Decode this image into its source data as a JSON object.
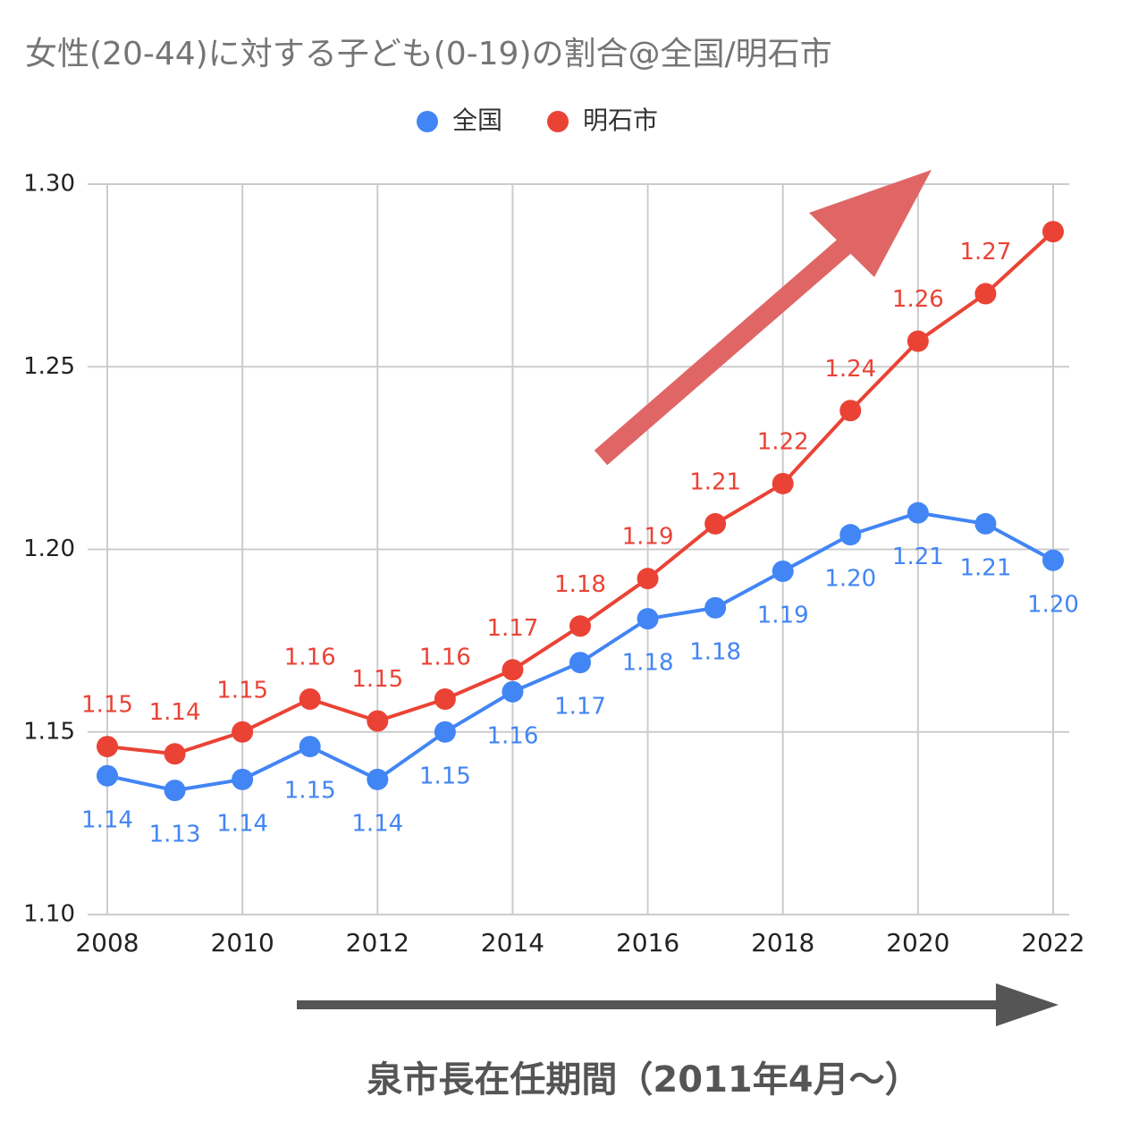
{
  "chart_data": {
    "type": "line",
    "title": "女性(20-44)に対する子ども(0-19)の割合@全国/明石市",
    "annotation": "泉市長在任期間（2011年4月〜）",
    "x": [
      2008,
      2009,
      2010,
      2011,
      2012,
      2013,
      2014,
      2015,
      2016,
      2017,
      2018,
      2019,
      2020,
      2021,
      2022
    ],
    "series": [
      {
        "name": "全国",
        "color": "#4285f4",
        "values": [
          1.138,
          1.134,
          1.137,
          1.146,
          1.137,
          1.15,
          1.161,
          1.169,
          1.181,
          1.184,
          1.194,
          1.204,
          1.21,
          1.207,
          1.197
        ],
        "value_labels": [
          "1.14",
          "1.13",
          "1.14",
          "1.15",
          "1.14",
          "1.15",
          "1.16",
          "1.17",
          "1.18",
          "1.18",
          "1.19",
          "1.20",
          "1.21",
          "1.21",
          "1.20"
        ]
      },
      {
        "name": "明石市",
        "color": "#ea4335",
        "values": [
          1.146,
          1.144,
          1.15,
          1.159,
          1.153,
          1.159,
          1.167,
          1.179,
          1.192,
          1.207,
          1.218,
          1.238,
          1.257,
          1.27,
          1.287
        ],
        "value_labels": [
          "1.15",
          "1.14",
          "1.15",
          "1.16",
          "1.15",
          "1.16",
          "1.17",
          "1.18",
          "1.19",
          "1.21",
          "1.22",
          "1.24",
          "1.26",
          "1.27",
          null
        ]
      }
    ],
    "xlim": [
      2008,
      2022
    ],
    "xticks": [
      2008,
      2010,
      2012,
      2014,
      2016,
      2018,
      2020,
      2022
    ],
    "ylim": [
      1.1,
      1.3
    ],
    "yticks": [
      {
        "value": 1.1,
        "label": "1.10"
      },
      1.15,
      {
        "value": 1.2,
        "label": "1.20"
      },
      1.25,
      {
        "value": 1.3,
        "label": "1.30"
      }
    ],
    "grid": true,
    "legend": "top"
  }
}
